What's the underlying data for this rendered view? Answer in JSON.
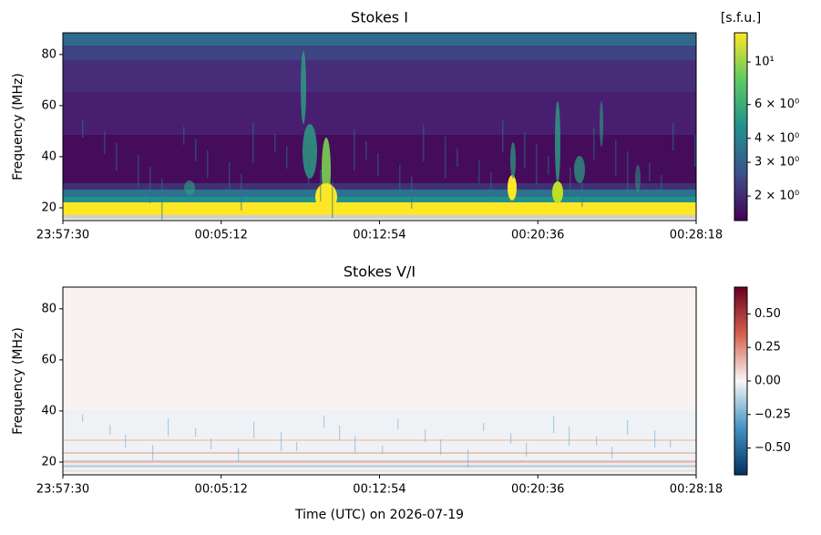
{
  "chart_data": [
    {
      "type": "heatmap",
      "title": "Stokes I",
      "ylabel": "Frequency (MHz)",
      "xlim": [
        0,
        1848
      ],
      "xticks": [
        {
          "value": 0,
          "label": "23:57:30"
        },
        {
          "value": 462,
          "label": "00:05:12"
        },
        {
          "value": 924,
          "label": "00:12:54"
        },
        {
          "value": 1386,
          "label": "00:20:36"
        },
        {
          "value": 1848,
          "label": "00:28:18"
        }
      ],
      "ylim": [
        15,
        88.5
      ],
      "yticks": [
        20,
        40,
        60,
        80
      ],
      "colorbar": {
        "label": "[s.f.u.]",
        "scale": "log",
        "lim": [
          1.49,
          14.2
        ],
        "ticks": [
          {
            "value": 10,
            "label": "10¹"
          },
          {
            "value": 6,
            "label": "6 × 10⁰"
          },
          {
            "value": 4,
            "label": "4 × 10⁰"
          },
          {
            "value": 3,
            "label": "3 × 10⁰"
          },
          {
            "value": 2,
            "label": "2 × 10⁰"
          }
        ],
        "colors": [
          "#440154",
          "#3b528b",
          "#21918c",
          "#5ec962",
          "#fde725"
        ]
      }
    },
    {
      "type": "heatmap",
      "title": "Stokes V/I",
      "ylabel": "Frequency (MHz)",
      "xlabel": "Time (UTC) on 2026-07-19",
      "xlim": [
        0,
        1848
      ],
      "xticks": [
        {
          "value": 0,
          "label": "23:57:30"
        },
        {
          "value": 462,
          "label": "00:05:12"
        },
        {
          "value": 924,
          "label": "00:12:54"
        },
        {
          "value": 1386,
          "label": "00:20:36"
        },
        {
          "value": 1848,
          "label": "00:28:18"
        }
      ],
      "ylim": [
        15,
        88.5
      ],
      "yticks": [
        20,
        40,
        60,
        80
      ],
      "colorbar": {
        "scale": "linear",
        "lim": [
          -0.7,
          0.7
        ],
        "ticks": [
          {
            "value": 0.5,
            "label": "0.50"
          },
          {
            "value": 0.25,
            "label": "0.25"
          },
          {
            "value": 0,
            "label": "0.00"
          },
          {
            "value": -0.25,
            "label": "−0.25"
          },
          {
            "value": -0.5,
            "label": "−0.50"
          }
        ],
        "colors": [
          "#053061",
          "#4393c3",
          "#f7f7f7",
          "#d6604d",
          "#67001f"
        ]
      }
    }
  ]
}
